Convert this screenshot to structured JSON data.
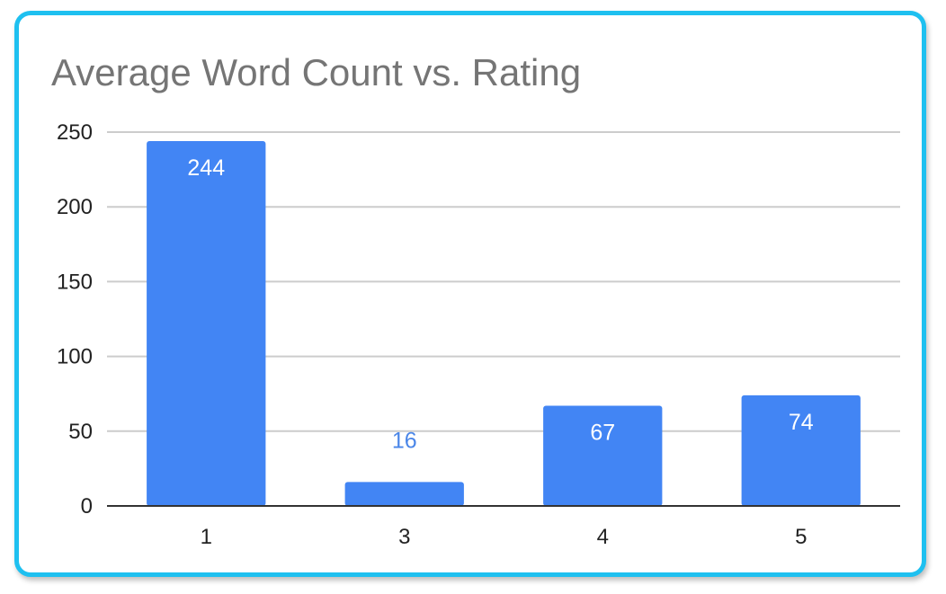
{
  "chart_data": {
    "type": "bar",
    "title": "Average Word Count vs. Rating",
    "xlabel": "",
    "ylabel": "",
    "categories": [
      "1",
      "3",
      "4",
      "5"
    ],
    "values": [
      244,
      16,
      67,
      74
    ],
    "data_labels": [
      "244",
      "16",
      "67",
      "74"
    ],
    "ylim": [
      0,
      250
    ],
    "yticks": [
      0,
      50,
      100,
      150,
      200,
      250
    ],
    "grid": true,
    "legend": "none",
    "colors": {
      "bar": "#4285f4",
      "label_inside": "#ffffff",
      "label_outside": "#4a86e8",
      "frame": "#1ec0f0"
    }
  }
}
